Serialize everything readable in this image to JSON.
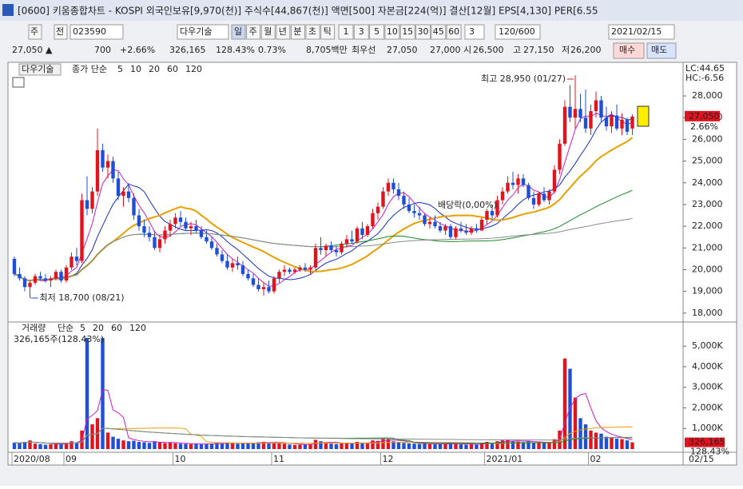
{
  "chart_data": {
    "type": "candlestick",
    "window_title": "[0600] 키움종합차트 - KOSPI 외국인보유[9,970(천)] 주식수[44,867(천)] 액면[500] 자본금[224(억)] 결산[12월] EPS[4,130] PER[6.55",
    "toolbar": {
      "market": "주",
      "scope": "전",
      "code": "023590",
      "name": "다우기술",
      "periods": [
        "일",
        "주",
        "월",
        "년",
        "분",
        "초",
        "틱"
      ],
      "intervals": [
        "1",
        "3",
        "5",
        "10",
        "15",
        "30",
        "45",
        "60"
      ],
      "count": "3",
      "range": "120/600",
      "date": "2021/02/15"
    },
    "quote": {
      "price": "27,050 ▲",
      "change": "700",
      "change_pct": "+2.66%",
      "volume": "326,165",
      "volume_ratio": "128.43%",
      "turnover": "0.73%",
      "amount": "8,705백만",
      "best_label": "최우선",
      "ask": "27,050",
      "bid": "27,000",
      "open_label": "시",
      "open": "26,500",
      "high_label": "고",
      "high": "27,150",
      "low_label": "저",
      "low": "26,200",
      "buy": "매수",
      "sell": "매도"
    },
    "legend": {
      "name": "다우기술",
      "ma_label": "종가 단순",
      "ma_periods": [
        5,
        10,
        20,
        60,
        120
      ],
      "ma_colors": [
        "#c81ec8",
        "#1030c0",
        "#e8a000",
        "#1a8a2a",
        "#8a8a8a"
      ]
    },
    "lc_label": "LC:44.65",
    "hc_label": "HC:-6.56",
    "annotations": {
      "high": "최고 28,950 (01/27)",
      "low": "최저 18,700 (08/21)",
      "ex_dividend": "배당락(0,00%)"
    },
    "high_index": 108,
    "low_index": 3,
    "ex_dividend_index": 88,
    "last_price_label": "27,050",
    "last_change_label": "2.66%",
    "up_color": "#e0141e",
    "down_color": "#1f4fd6",
    "ylim": [
      17700,
      29400
    ],
    "yticks": [
      {
        "value": 18000,
        "label": "18,000"
      },
      {
        "value": 19000,
        "label": "19,000"
      },
      {
        "value": 20000,
        "label": "20,000"
      },
      {
        "value": 21000,
        "label": "21,000"
      },
      {
        "value": 22000,
        "label": "22,000"
      },
      {
        "value": 23000,
        "label": "23,000"
      },
      {
        "value": 24000,
        "label": "24,000"
      },
      {
        "value": 25000,
        "label": "25,000"
      },
      {
        "value": 26000,
        "label": "26,000"
      },
      {
        "value": 27000,
        "label": "27,000"
      },
      {
        "value": 28000,
        "label": "28,000"
      }
    ],
    "xticks": [
      {
        "value": 0,
        "label": "2020/08"
      },
      {
        "value": 10,
        "label": "09"
      },
      {
        "value": 31,
        "label": "10"
      },
      {
        "value": 50,
        "label": "11"
      },
      {
        "value": 71,
        "label": "12"
      },
      {
        "value": 91,
        "label": "2021/01"
      },
      {
        "value": 111,
        "label": "02"
      }
    ],
    "x_end_label": "02/15",
    "open": [
      20500,
      19800,
      19600,
      19200,
      19400,
      19700,
      19600,
      19500,
      19600,
      19900,
      19500,
      20100,
      20600,
      20400,
      23200,
      22800,
      23600,
      25500,
      24700,
      25000,
      24200,
      23400,
      23600,
      23300,
      22500,
      22000,
      21700,
      21500,
      21000,
      21400,
      21800,
      22100,
      22400,
      22200,
      21900,
      22000,
      21800,
      21500,
      21300,
      21000,
      20700,
      20400,
      20100,
      20300,
      20200,
      19800,
      19600,
      19300,
      19100,
      19200,
      19000,
      19600,
      19900,
      20000,
      19900,
      20000,
      20100,
      20000,
      20100,
      21000,
      20900,
      21100,
      20900,
      20800,
      21200,
      21400,
      21300,
      21900,
      21600,
      22000,
      22600,
      22900,
      23600,
      24000,
      23700,
      23400,
      23000,
      22700,
      22600,
      22500,
      22100,
      22200,
      22000,
      21800,
      22000,
      21500,
      21900,
      21800,
      21700,
      21900,
      21800,
      22300,
      22700,
      22500,
      23200,
      23600,
      24000,
      23900,
      24200,
      23900,
      23300,
      23000,
      23500,
      23200,
      23600,
      24600,
      25800,
      27500,
      27000,
      27400,
      27000,
      26500,
      27300,
      27800,
      27000,
      26600,
      27100,
      26500,
      26900,
      26500
    ],
    "high": [
      20600,
      20100,
      19700,
      19500,
      19800,
      19900,
      19800,
      19700,
      20000,
      20000,
      20200,
      20800,
      21000,
      23500,
      24300,
      23800,
      26500,
      25800,
      25300,
      25200,
      24500,
      23800,
      24000,
      23500,
      22800,
      22300,
      22000,
      21800,
      21600,
      22000,
      22300,
      22600,
      22700,
      22400,
      22200,
      22300,
      22000,
      21800,
      21500,
      21200,
      20900,
      20700,
      20500,
      20600,
      20400,
      20000,
      19800,
      19600,
      19400,
      19500,
      19700,
      20000,
      20200,
      20100,
      20100,
      20200,
      20300,
      20200,
      21200,
      21500,
      21200,
      21300,
      21100,
      21300,
      21600,
      21800,
      22000,
      22200,
      22100,
      22800,
      23100,
      23800,
      24200,
      24200,
      24000,
      23600,
      23300,
      23000,
      22900,
      22600,
      22400,
      22500,
      22200,
      22100,
      22100,
      22000,
      22200,
      22100,
      22000,
      22100,
      22400,
      22800,
      23000,
      23400,
      23800,
      24300,
      24500,
      24400,
      24400,
      24000,
      23600,
      23600,
      23800,
      23700,
      24800,
      26000,
      27800,
      28500,
      28950,
      28100,
      28300,
      27600,
      28200,
      28000,
      27500,
      27300,
      27600,
      27200,
      27000,
      27150
    ],
    "low": [
      19700,
      19500,
      19000,
      18700,
      19300,
      19500,
      19400,
      19200,
      19500,
      19400,
      19400,
      20000,
      20200,
      20300,
      22500,
      22600,
      23400,
      24500,
      24200,
      24000,
      23200,
      22900,
      23100,
      22300,
      21800,
      21500,
      21300,
      20900,
      20800,
      21200,
      21500,
      21900,
      22000,
      21800,
      21600,
      21700,
      21400,
      21200,
      20900,
      20600,
      20300,
      20000,
      19900,
      20000,
      19700,
      19500,
      19200,
      19000,
      18800,
      18900,
      18900,
      19400,
      19700,
      19800,
      19800,
      19900,
      19900,
      19800,
      20000,
      20700,
      20600,
      20800,
      20600,
      20700,
      21000,
      21200,
      21200,
      21400,
      21500,
      21900,
      22300,
      22800,
      23400,
      23500,
      23200,
      22800,
      22600,
      22400,
      22300,
      22000,
      21900,
      21900,
      21700,
      21600,
      21400,
      21400,
      21700,
      21600,
      21600,
      21700,
      21800,
      22100,
      22300,
      22400,
      23000,
      23500,
      23700,
      23500,
      23800,
      23200,
      22800,
      22900,
      23100,
      23000,
      23500,
      24400,
      25700,
      26800,
      26500,
      26800,
      26300,
      26200,
      27000,
      26800,
      26400,
      26300,
      26400,
      26200,
      26200,
      26200
    ],
    "close": [
      19800,
      19600,
      19200,
      19400,
      19700,
      19600,
      19500,
      19600,
      19900,
      19500,
      20100,
      20600,
      20400,
      23200,
      22800,
      23600,
      25500,
      24700,
      25000,
      24200,
      23400,
      23600,
      23300,
      22500,
      22000,
      21700,
      21500,
      21000,
      21400,
      21800,
      22100,
      22400,
      22200,
      21900,
      22000,
      21800,
      21500,
      21300,
      21000,
      20700,
      20400,
      20100,
      20300,
      20200,
      19800,
      19600,
      19300,
      19100,
      19200,
      19000,
      19600,
      19900,
      20000,
      19900,
      20000,
      20100,
      20000,
      20100,
      21000,
      20900,
      21100,
      20900,
      20800,
      21200,
      21400,
      21300,
      21900,
      21600,
      22000,
      22600,
      22900,
      23600,
      24000,
      23700,
      23400,
      23000,
      22700,
      22600,
      22500,
      22100,
      22200,
      22000,
      21800,
      22000,
      21500,
      21900,
      21800,
      21700,
      21900,
      21800,
      22300,
      22700,
      22500,
      23200,
      23600,
      24000,
      23900,
      24200,
      23900,
      23300,
      23000,
      23500,
      23200,
      23600,
      24600,
      25800,
      27500,
      27000,
      27400,
      27000,
      26500,
      27300,
      27800,
      27000,
      26600,
      27100,
      26500,
      26900,
      26350,
      27050
    ],
    "volume_chart": {
      "label": "거래량",
      "ma_label": "단순",
      "ma_periods": [
        5,
        20,
        60,
        120
      ],
      "ma_colors": [
        "#c81ec8",
        "#e8a000",
        "#1a8a2a",
        "#8a8a8a"
      ],
      "summary": "326,165주(128.43%)",
      "last_label": "326,165",
      "last_ratio": "128.43%",
      "ylim": [
        0,
        5900
      ],
      "yticks": [
        {
          "value": 1000,
          "label": "1,000K"
        },
        {
          "value": 2000,
          "label": "2,000K"
        },
        {
          "value": 3000,
          "label": "3,000K"
        },
        {
          "value": 4000,
          "label": "4,000K"
        },
        {
          "value": 5000,
          "label": "5,000K"
        }
      ],
      "values": [
        310,
        280,
        350,
        420,
        260,
        240,
        210,
        230,
        280,
        250,
        300,
        380,
        320,
        900,
        5400,
        1200,
        1500,
        5400,
        800,
        600,
        500,
        420,
        380,
        400,
        350,
        330,
        300,
        380,
        320,
        290,
        310,
        280,
        260,
        250,
        240,
        260,
        230,
        250,
        270,
        300,
        280,
        320,
        290,
        260,
        300,
        280,
        310,
        330,
        350,
        300,
        320,
        290,
        260,
        220,
        200,
        210,
        230,
        240,
        450,
        380,
        300,
        260,
        240,
        280,
        300,
        260,
        350,
        300,
        280,
        420,
        400,
        520,
        480,
        380,
        330,
        300,
        280,
        260,
        250,
        280,
        240,
        230,
        260,
        240,
        300,
        250,
        230,
        220,
        240,
        230,
        290,
        350,
        300,
        380,
        420,
        450,
        380,
        360,
        340,
        400,
        330,
        310,
        300,
        290,
        480,
        900,
        4400,
        3900,
        2500,
        1500,
        1200,
        900,
        800,
        750,
        600,
        550,
        500,
        480,
        420,
        326.165
      ]
    }
  }
}
